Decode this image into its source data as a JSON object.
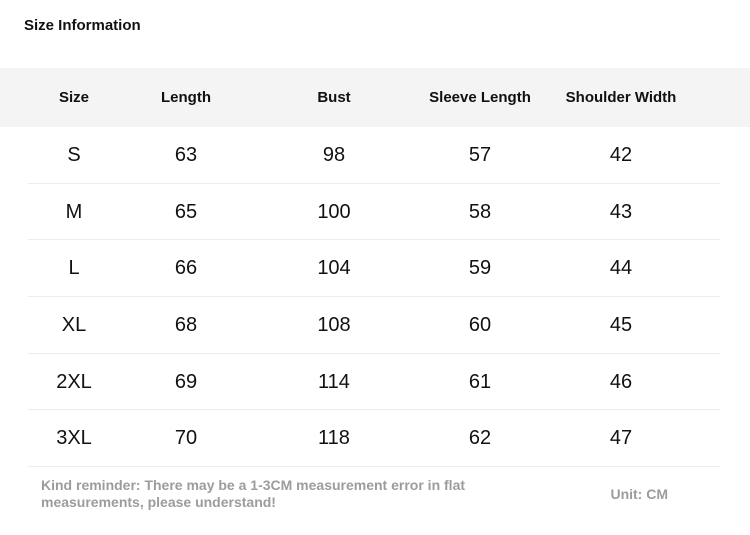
{
  "title": "Size Information",
  "table": {
    "headers": [
      "Size",
      "Length",
      "Bust",
      "Sleeve Length",
      "Shoulder Width"
    ],
    "rows": [
      [
        "S",
        "63",
        "98",
        "57",
        "42"
      ],
      [
        "M",
        "65",
        "100",
        "58",
        "43"
      ],
      [
        "L",
        "66",
        "104",
        "59",
        "44"
      ],
      [
        "XL",
        "68",
        "108",
        "60",
        "45"
      ],
      [
        "2XL",
        "69",
        "114",
        "61",
        "46"
      ],
      [
        "3XL",
        "70",
        "118",
        "62",
        "47"
      ]
    ]
  },
  "footer": {
    "reminder": "Kind reminder: There may be a 1-3CM measurement error in flat measurements, please understand!",
    "unit": "Unit: CM"
  },
  "colors": {
    "page_background": "#ffffff",
    "header_background": "#f4f4f5",
    "divider": "#ececec",
    "text": "#111111",
    "muted_text": "#9c9c9c"
  }
}
